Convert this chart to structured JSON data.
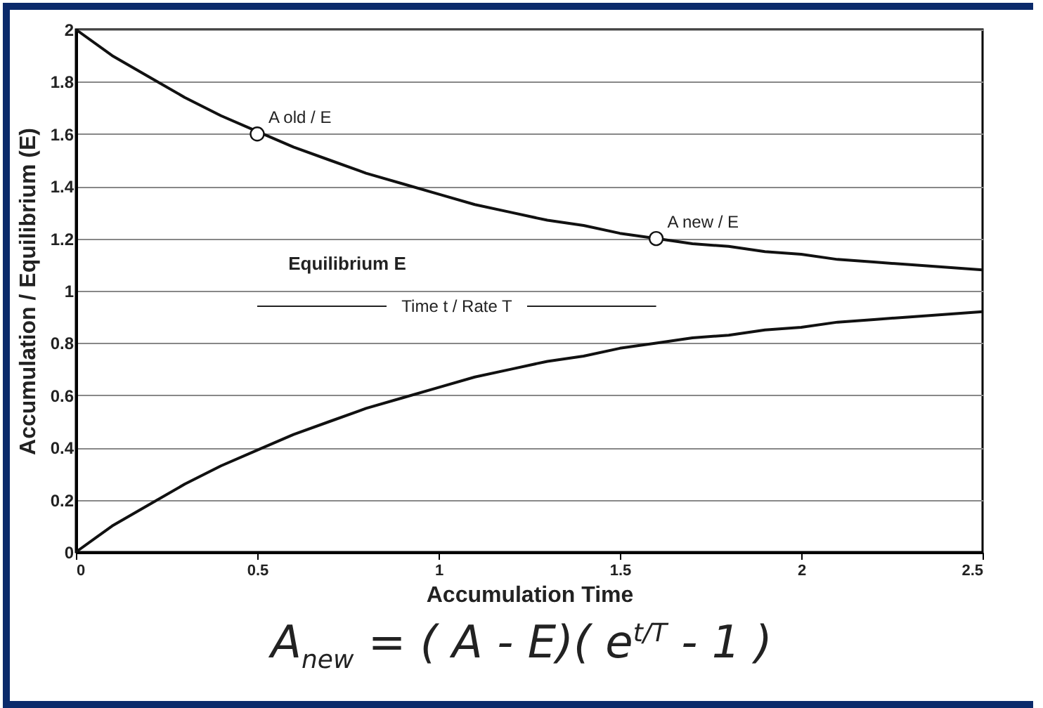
{
  "chart_data": {
    "type": "line",
    "xlabel": "Accumulation Time",
    "ylabel": "Accumulation / Equilibrium (E)",
    "x": [
      0,
      0.1,
      0.2,
      0.3,
      0.4,
      0.5,
      0.6,
      0.7,
      0.8,
      0.9,
      1,
      1.1,
      1.2,
      1.3,
      1.4,
      1.5,
      1.6,
      1.7,
      1.8,
      1.9,
      2,
      2.1,
      2.2,
      2.3,
      2.4,
      2.5
    ],
    "series": [
      {
        "color": "#111111",
        "values": [
          2,
          1.9,
          1.82,
          1.74,
          1.67,
          1.61,
          1.55,
          1.5,
          1.45,
          1.41,
          1.37,
          1.33,
          1.3,
          1.27,
          1.25,
          1.22,
          1.2,
          1.18,
          1.17,
          1.15,
          1.14,
          1.12,
          1.11,
          1.1,
          1.09,
          1.08
        ]
      },
      {
        "color": "#111111",
        "values": [
          0,
          0.1,
          0.18,
          0.26,
          0.33,
          0.39,
          0.45,
          0.5,
          0.55,
          0.59,
          0.63,
          0.67,
          0.7,
          0.73,
          0.75,
          0.78,
          0.8,
          0.82,
          0.83,
          0.85,
          0.86,
          0.88,
          0.89,
          0.9,
          0.91,
          0.92
        ]
      },
      {
        "type": "scatter",
        "color": "#111111",
        "marker": "circle",
        "x": [
          0.5,
          1.6
        ],
        "values": [
          1.6,
          1.2
        ]
      }
    ],
    "xlim": [
      0,
      2.5
    ],
    "xticks": [
      0,
      0.5,
      1,
      1.5,
      2,
      2.5
    ],
    "ylim": [
      0,
      2
    ],
    "yticks": [
      0,
      0.2,
      0.4,
      0.6,
      0.8,
      1,
      1.2,
      1.4,
      1.6,
      1.8,
      2
    ],
    "grid": "y",
    "annotations": [
      {
        "text": "A old / E",
        "x": 0.5,
        "y": 1.6
      },
      {
        "text": "A new / E",
        "x": 1.6,
        "y": 1.2
      },
      "Equilibrium E",
      "Time t / Rate T",
      "A$_{new}$ = ( A - E)( e$^{t/T}$ - 1 )"
    ]
  }
}
